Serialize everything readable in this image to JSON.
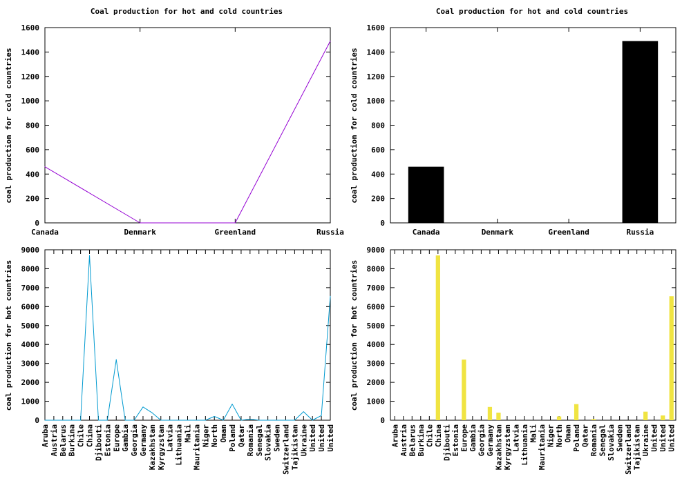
{
  "chart_data": [
    {
      "type": "line",
      "title": "Coal production for hot and cold countries",
      "xlabel": "",
      "ylabel": "coal production for cold countries",
      "categories": [
        "Canada",
        "Denmark",
        "Greenland",
        "Russia"
      ],
      "series": [
        {
          "values": [
            460,
            0,
            0,
            1490
          ]
        }
      ],
      "ylim": [
        0,
        1600
      ],
      "yticks": [
        0,
        200,
        400,
        600,
        800,
        1000,
        1200,
        1400,
        1600
      ],
      "color": "#9400d3"
    },
    {
      "type": "bar",
      "title": "Coal production for hot and cold countries",
      "xlabel": "",
      "ylabel": "coal production for cold countries",
      "categories": [
        "Canada",
        "Denmark",
        "Greenland",
        "Russia"
      ],
      "series": [
        {
          "values": [
            460,
            0,
            0,
            1490
          ]
        }
      ],
      "ylim": [
        0,
        1600
      ],
      "yticks": [
        0,
        200,
        400,
        600,
        800,
        1000,
        1200,
        1400,
        1600
      ],
      "color": "#000000"
    },
    {
      "type": "line",
      "title": "",
      "xlabel": "",
      "ylabel": "coal production for hot countries",
      "categories": [
        "Aruba",
        "Austria",
        "Belarus",
        "Burkina",
        "Chile",
        "China",
        "Djibouti",
        "Estonia",
        "Europe",
        "Gambia",
        "Georgia",
        "Germany",
        "Kazakhstan",
        "Kyrgyzstan",
        "Latvia",
        "Lithuania",
        "Mali",
        "Mauritania",
        "Niger",
        "North",
        "Oman",
        "Poland",
        "Qatar",
        "Romania",
        "Senegal",
        "Slovakia",
        "Sweden",
        "Switzerland",
        "Tajikistan",
        "Ukraine",
        "United",
        "United",
        "United"
      ],
      "series": [
        {
          "values": [
            0,
            0,
            0,
            0,
            0,
            8700,
            0,
            0,
            3200,
            0,
            0,
            700,
            400,
            0,
            0,
            0,
            0,
            0,
            0,
            200,
            0,
            850,
            0,
            60,
            0,
            0,
            0,
            0,
            0,
            450,
            0,
            250,
            6550
          ]
        }
      ],
      "ylim": [
        0,
        9000
      ],
      "yticks": [
        0,
        1000,
        2000,
        3000,
        4000,
        5000,
        6000,
        7000,
        8000,
        9000
      ],
      "color": "#009ad0"
    },
    {
      "type": "bar",
      "title": "",
      "xlabel": "",
      "ylabel": "coal production for hot countries",
      "categories": [
        "Aruba",
        "Austria",
        "Belarus",
        "Burkina",
        "Chile",
        "China",
        "Djibouti",
        "Estonia",
        "Europe",
        "Gambia",
        "Georgia",
        "Germany",
        "Kazakhstan",
        "Kyrgyzstan",
        "Latvia",
        "Lithuania",
        "Mali",
        "Mauritania",
        "Niger",
        "North",
        "Oman",
        "Poland",
        "Qatar",
        "Romania",
        "Senegal",
        "Slovakia",
        "Sweden",
        "Switzerland",
        "Tajikistan",
        "Ukraine",
        "United",
        "United",
        "United"
      ],
      "series": [
        {
          "values": [
            0,
            0,
            0,
            0,
            0,
            8700,
            0,
            0,
            3200,
            0,
            0,
            700,
            400,
            0,
            0,
            0,
            0,
            0,
            0,
            200,
            0,
            850,
            0,
            60,
            0,
            0,
            0,
            0,
            0,
            450,
            0,
            250,
            6550
          ]
        }
      ],
      "ylim": [
        0,
        9000
      ],
      "yticks": [
        0,
        1000,
        2000,
        3000,
        4000,
        5000,
        6000,
        7000,
        8000,
        9000
      ],
      "color": "#f0e442"
    }
  ]
}
